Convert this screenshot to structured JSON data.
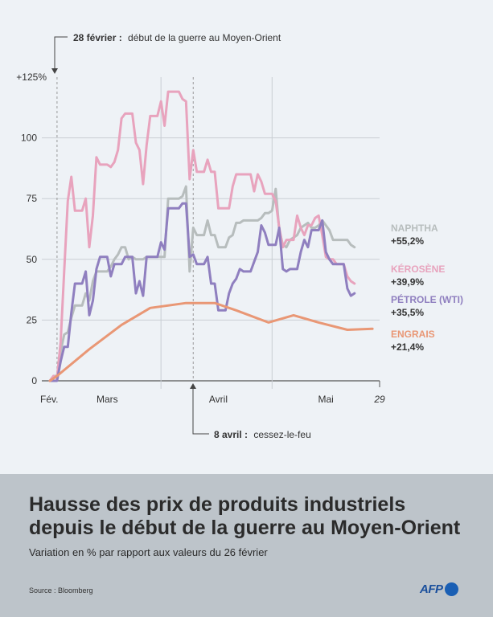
{
  "colors": {
    "background": "#eef2f6",
    "footer": "#bdc4ca",
    "naphtha": "#b7bdbd",
    "kerosene": "#e8a3bd",
    "petrole": "#8f7fbf",
    "engrais": "#e99775",
    "grid": "#c9ced3",
    "axis": "#555555"
  },
  "header_annotation": {
    "date": "28 février :",
    "text": "début de la guerre au Moyen-Orient"
  },
  "bottom_annotation": {
    "date": "8 avril :",
    "text": "cessez-le-feu"
  },
  "title_line1": "Hausse des prix de produits industriels",
  "title_line2": "depuis le début de la guerre au Moyen-Orient",
  "subtitle": "Variation en % par rapport aux valeurs du 26 février",
  "source": "Source : Bloomberg",
  "logo_text": "AFP",
  "chart_data": {
    "type": "line",
    "x_unit": "days since 26 February",
    "xlim": [
      0,
      92
    ],
    "ylim": [
      0,
      125
    ],
    "y_ticks": [
      0,
      25,
      50,
      75,
      100
    ],
    "y_tick_labels": [
      "0",
      "25",
      "50",
      "75",
      "100"
    ],
    "y_top_label": "+125%",
    "x_ticks": [
      {
        "label": "Fév.",
        "x": 0
      },
      {
        "label": "Mars",
        "x": 16
      },
      {
        "label": "Avril",
        "x": 47
      },
      {
        "label": "Mai",
        "x": 77
      },
      {
        "label": "29",
        "x": 92
      }
    ],
    "x_separators": [
      31,
      62
    ],
    "events": [
      {
        "name": "war-start",
        "x": 2
      },
      {
        "name": "ceasefire",
        "x": 40
      }
    ],
    "series": [
      {
        "key": "naphtha",
        "name": "NAPHTHA",
        "value_label": "+55,2%",
        "points": [
          [
            0,
            0
          ],
          [
            1,
            2
          ],
          [
            2,
            2
          ],
          [
            3,
            12
          ],
          [
            4,
            19
          ],
          [
            5,
            20
          ],
          [
            6,
            26
          ],
          [
            7,
            31
          ],
          [
            8,
            31
          ],
          [
            9,
            31
          ],
          [
            10,
            36
          ],
          [
            11,
            33
          ],
          [
            12,
            41
          ],
          [
            13,
            45
          ],
          [
            14,
            45
          ],
          [
            15,
            45
          ],
          [
            16,
            45
          ],
          [
            17,
            47
          ],
          [
            18,
            50
          ],
          [
            19,
            52
          ],
          [
            20,
            55
          ],
          [
            21,
            55
          ],
          [
            22,
            50
          ],
          [
            23,
            51
          ],
          [
            24,
            50
          ],
          [
            25,
            50
          ],
          [
            26,
            50
          ],
          [
            27,
            51
          ],
          [
            28,
            51
          ],
          [
            29,
            51
          ],
          [
            30,
            51
          ],
          [
            31,
            51
          ],
          [
            32,
            51
          ],
          [
            33,
            75
          ],
          [
            34,
            75
          ],
          [
            35,
            75
          ],
          [
            36,
            75
          ],
          [
            37,
            76
          ],
          [
            38,
            80
          ],
          [
            39,
            45
          ],
          [
            40,
            63
          ],
          [
            41,
            60
          ],
          [
            42,
            60
          ],
          [
            43,
            60
          ],
          [
            44,
            66
          ],
          [
            45,
            60
          ],
          [
            46,
            60
          ],
          [
            47,
            55
          ],
          [
            48,
            55
          ],
          [
            49,
            55
          ],
          [
            50,
            59
          ],
          [
            51,
            60
          ],
          [
            52,
            65
          ],
          [
            53,
            65
          ],
          [
            54,
            66
          ],
          [
            55,
            66
          ],
          [
            56,
            66
          ],
          [
            57,
            66
          ],
          [
            58,
            66
          ],
          [
            59,
            67
          ],
          [
            60,
            69
          ],
          [
            61,
            69
          ],
          [
            62,
            70
          ],
          [
            63,
            79
          ],
          [
            64,
            62
          ],
          [
            65,
            56
          ],
          [
            66,
            55
          ],
          [
            67,
            58
          ],
          [
            68,
            59
          ],
          [
            69,
            60
          ],
          [
            70,
            63
          ],
          [
            71,
            64
          ],
          [
            72,
            65
          ],
          [
            73,
            63
          ],
          [
            74,
            63
          ],
          [
            75,
            64
          ],
          [
            76,
            66
          ],
          [
            77,
            64
          ],
          [
            78,
            62
          ],
          [
            79,
            58
          ],
          [
            80,
            58
          ],
          [
            81,
            58
          ],
          [
            82,
            58
          ],
          [
            83,
            58
          ],
          [
            84,
            56
          ],
          [
            85,
            55
          ]
        ]
      },
      {
        "key": "kerosene",
        "name": "KÉROSÈNE",
        "value_label": "+39,9%",
        "points": [
          [
            0,
            0
          ],
          [
            1,
            2
          ],
          [
            2,
            1
          ],
          [
            3,
            16
          ],
          [
            4,
            45
          ],
          [
            5,
            74
          ],
          [
            6,
            84
          ],
          [
            7,
            70
          ],
          [
            8,
            70
          ],
          [
            9,
            70
          ],
          [
            10,
            75
          ],
          [
            11,
            55
          ],
          [
            12,
            68
          ],
          [
            13,
            92
          ],
          [
            14,
            89
          ],
          [
            15,
            89
          ],
          [
            16,
            89
          ],
          [
            17,
            88
          ],
          [
            18,
            90
          ],
          [
            19,
            95
          ],
          [
            20,
            108
          ],
          [
            21,
            110
          ],
          [
            22,
            110
          ],
          [
            23,
            110
          ],
          [
            24,
            98
          ],
          [
            25,
            95
          ],
          [
            26,
            81
          ],
          [
            27,
            97
          ],
          [
            28,
            109
          ],
          [
            29,
            109
          ],
          [
            30,
            109
          ],
          [
            31,
            115
          ],
          [
            32,
            105
          ],
          [
            33,
            119
          ],
          [
            34,
            119
          ],
          [
            35,
            119
          ],
          [
            36,
            119
          ],
          [
            37,
            116
          ],
          [
            38,
            115
          ],
          [
            39,
            83
          ],
          [
            40,
            95
          ],
          [
            41,
            86
          ],
          [
            42,
            86
          ],
          [
            43,
            86
          ],
          [
            44,
            91
          ],
          [
            45,
            86
          ],
          [
            46,
            86
          ],
          [
            47,
            71
          ],
          [
            48,
            71
          ],
          [
            49,
            71
          ],
          [
            50,
            71
          ],
          [
            51,
            80
          ],
          [
            52,
            85
          ],
          [
            53,
            85
          ],
          [
            54,
            85
          ],
          [
            55,
            85
          ],
          [
            56,
            85
          ],
          [
            57,
            78
          ],
          [
            58,
            85
          ],
          [
            59,
            82
          ],
          [
            60,
            77
          ],
          [
            61,
            77
          ],
          [
            62,
            77
          ],
          [
            63,
            74
          ],
          [
            64,
            63
          ],
          [
            65,
            55
          ],
          [
            66,
            58
          ],
          [
            67,
            58
          ],
          [
            68,
            58
          ],
          [
            69,
            68
          ],
          [
            70,
            63
          ],
          [
            71,
            60
          ],
          [
            72,
            64
          ],
          [
            73,
            64
          ],
          [
            74,
            67
          ],
          [
            75,
            68
          ],
          [
            76,
            60
          ],
          [
            77,
            51
          ],
          [
            78,
            50
          ],
          [
            79,
            50
          ],
          [
            80,
            48
          ],
          [
            81,
            48
          ],
          [
            82,
            48
          ],
          [
            83,
            43
          ],
          [
            84,
            41
          ],
          [
            85,
            40
          ]
        ]
      },
      {
        "key": "petrole",
        "name": "PÉTROLE (WTI)",
        "value_label": "+35,5%",
        "points": [
          [
            0,
            0
          ],
          [
            1,
            0
          ],
          [
            2,
            0
          ],
          [
            3,
            8
          ],
          [
            4,
            14
          ],
          [
            5,
            14
          ],
          [
            6,
            28
          ],
          [
            7,
            40
          ],
          [
            8,
            40
          ],
          [
            9,
            40
          ],
          [
            10,
            45
          ],
          [
            11,
            27
          ],
          [
            12,
            33
          ],
          [
            13,
            46
          ],
          [
            14,
            51
          ],
          [
            15,
            51
          ],
          [
            16,
            51
          ],
          [
            17,
            43
          ],
          [
            18,
            48
          ],
          [
            19,
            48
          ],
          [
            20,
            48
          ],
          [
            21,
            51
          ],
          [
            22,
            51
          ],
          [
            23,
            51
          ],
          [
            24,
            36
          ],
          [
            25,
            41
          ],
          [
            26,
            35
          ],
          [
            27,
            51
          ],
          [
            28,
            51
          ],
          [
            29,
            51
          ],
          [
            30,
            51
          ],
          [
            31,
            57
          ],
          [
            32,
            54
          ],
          [
            33,
            71
          ],
          [
            34,
            71
          ],
          [
            35,
            71
          ],
          [
            36,
            71
          ],
          [
            37,
            73
          ],
          [
            38,
            73
          ],
          [
            39,
            51
          ],
          [
            40,
            52
          ],
          [
            41,
            48
          ],
          [
            42,
            48
          ],
          [
            43,
            48
          ],
          [
            44,
            51
          ],
          [
            45,
            40
          ],
          [
            46,
            40
          ],
          [
            47,
            29
          ],
          [
            48,
            29
          ],
          [
            49,
            29
          ],
          [
            50,
            36
          ],
          [
            51,
            40
          ],
          [
            52,
            42
          ],
          [
            53,
            46
          ],
          [
            54,
            45
          ],
          [
            55,
            45
          ],
          [
            56,
            45
          ],
          [
            57,
            49
          ],
          [
            58,
            53
          ],
          [
            59,
            64
          ],
          [
            60,
            61
          ],
          [
            61,
            56
          ],
          [
            62,
            56
          ],
          [
            63,
            56
          ],
          [
            64,
            63
          ],
          [
            65,
            46
          ],
          [
            66,
            45
          ],
          [
            67,
            46
          ],
          [
            68,
            46
          ],
          [
            69,
            46
          ],
          [
            70,
            53
          ],
          [
            71,
            58
          ],
          [
            72,
            55
          ],
          [
            73,
            62
          ],
          [
            74,
            62
          ],
          [
            75,
            62
          ],
          [
            76,
            66
          ],
          [
            77,
            53
          ],
          [
            78,
            50
          ],
          [
            79,
            48
          ],
          [
            80,
            48
          ],
          [
            81,
            48
          ],
          [
            82,
            48
          ],
          [
            83,
            38
          ],
          [
            84,
            35
          ],
          [
            85,
            36
          ]
        ]
      },
      {
        "key": "engrais",
        "name": "ENGRAIS",
        "value_label": "+21,4%",
        "points": [
          [
            0,
            0
          ],
          [
            2,
            2
          ],
          [
            11,
            13
          ],
          [
            20,
            23
          ],
          [
            28,
            30
          ],
          [
            38,
            32
          ],
          [
            46,
            32
          ],
          [
            52,
            29
          ],
          [
            61,
            24
          ],
          [
            68,
            27
          ],
          [
            75,
            24
          ],
          [
            83,
            21
          ],
          [
            90,
            21.4
          ]
        ]
      }
    ]
  }
}
